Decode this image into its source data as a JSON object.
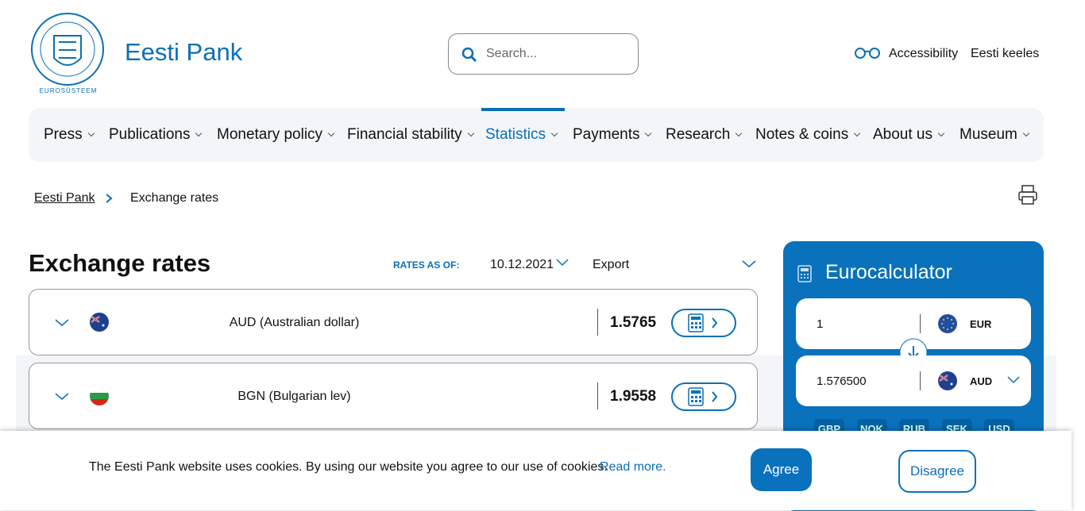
{
  "header": {
    "logo_text": "Eesti Pank",
    "logo_sub": "EUROSÜSTEEM",
    "search_placeholder": "Search...",
    "accessibility": "Accessibility",
    "language": "Eesti keeles"
  },
  "nav": [
    {
      "label": "Press"
    },
    {
      "label": "Publications"
    },
    {
      "label": "Monetary policy"
    },
    {
      "label": "Financial stability"
    },
    {
      "label": "Statistics",
      "active": true
    },
    {
      "label": "Payments"
    },
    {
      "label": "Research"
    },
    {
      "label": "Notes & coins"
    },
    {
      "label": "About us"
    },
    {
      "label": "Museum"
    }
  ],
  "breadcrumb": [
    "Eesti Pank",
    "Exchange rates"
  ],
  "main": {
    "title": "Exchange rates",
    "rates_as_of_label": "RATES AS OF:",
    "date": "10.12.2021",
    "export": "Export",
    "rates": [
      {
        "currency": "AUD (Australian dollar)",
        "rate": 1.5765,
        "flag": "aud"
      },
      {
        "currency": "BGN (Bulgarian lev)",
        "rate": 1.9558,
        "flag": "bgn"
      }
    ]
  },
  "calculator": {
    "title": "Eurocalculator",
    "amount": "1",
    "from": "EUR",
    "result": "1.576500",
    "to": "AUD",
    "quick": [
      "GBP",
      "NOK",
      "RUB",
      "SEK",
      "USD"
    ]
  },
  "cookie": {
    "text": "The Eesti Pank website uses cookies. By using our website you agree to our use of cookies.",
    "link": "Read more.",
    "agree": "Agree",
    "disagree": "Disagree"
  }
}
